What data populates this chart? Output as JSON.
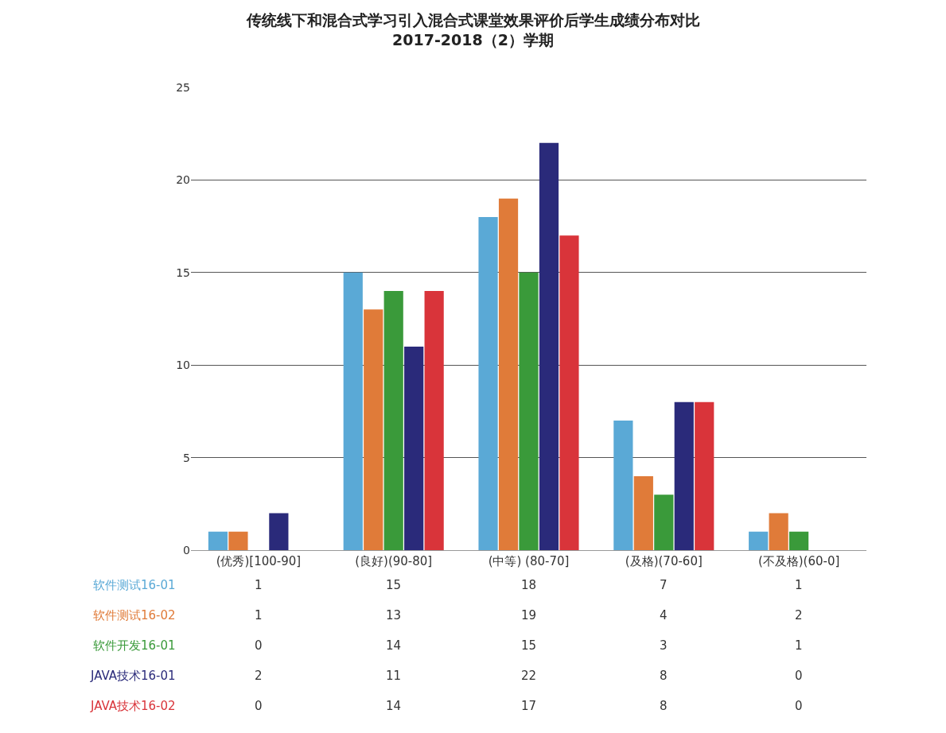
{
  "chart_data": {
    "type": "bar",
    "title": "传统线下和混合式学习引入混合式课堂效果评价后学生成绩分布对比",
    "subtitle": "2017-2018（2）学期",
    "categories": [
      "(优秀)[100-90]",
      "(良好)(90-80]",
      "(中等) (80-70]",
      "(及格)(70-60]",
      "(不及格)(60-0]"
    ],
    "series": [
      {
        "name": "软件测试16-01",
        "color": "#5aa9d6",
        "values": [
          1,
          15,
          18,
          7,
          1
        ]
      },
      {
        "name": "软件测试16-02",
        "color": "#e07b39",
        "values": [
          1,
          13,
          19,
          4,
          2
        ]
      },
      {
        "name": "软件开发16-01",
        "color": "#3a9a3a",
        "values": [
          0,
          14,
          15,
          3,
          1
        ]
      },
      {
        "name": "JAVA技术16-01",
        "color": "#2a2a7a",
        "values": [
          2,
          11,
          22,
          8,
          0
        ]
      },
      {
        "name": "JAVA技术16-02",
        "color": "#d9343a",
        "values": [
          0,
          14,
          17,
          8,
          0
        ]
      }
    ],
    "ylim": [
      0,
      25
    ],
    "yticks": [
      0,
      5,
      10,
      15,
      20,
      25
    ],
    "grid": "y",
    "data_labels": true,
    "legend": false
  }
}
